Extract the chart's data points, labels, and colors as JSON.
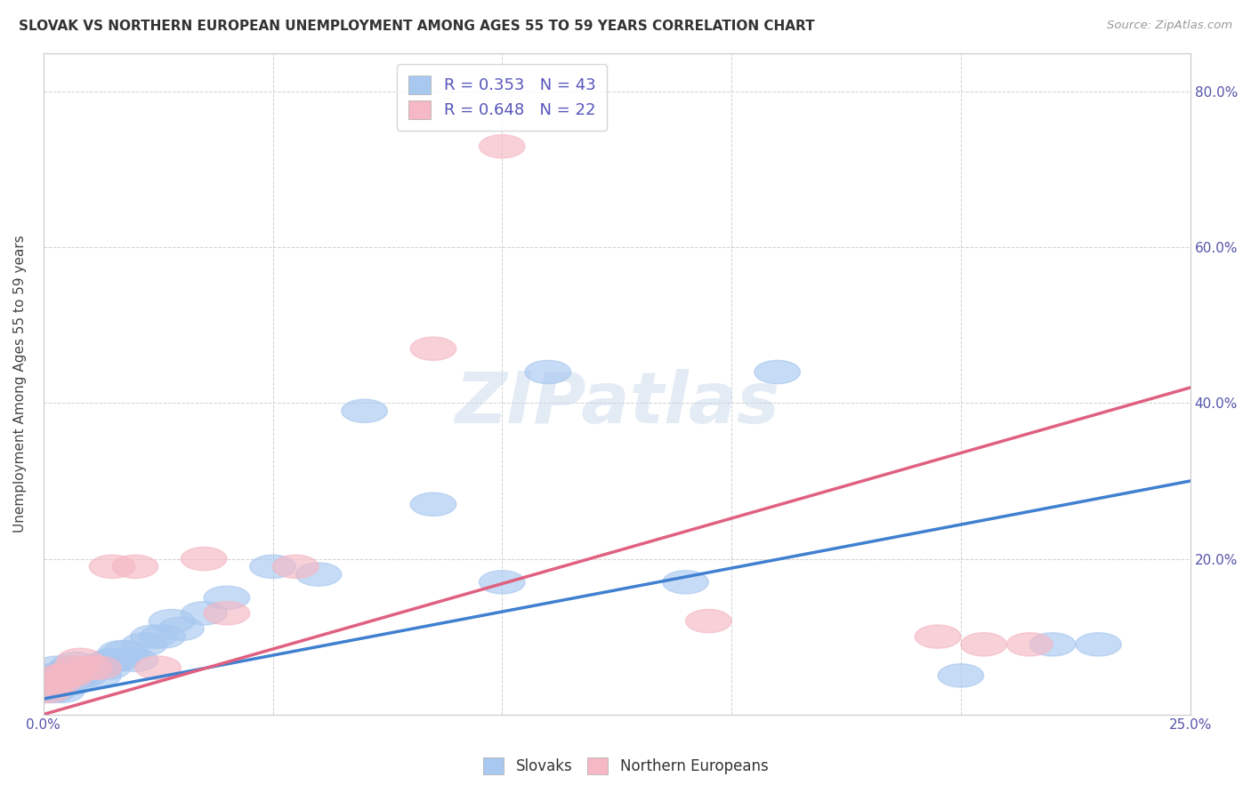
{
  "title": "SLOVAK VS NORTHERN EUROPEAN UNEMPLOYMENT AMONG AGES 55 TO 59 YEARS CORRELATION CHART",
  "source": "Source: ZipAtlas.com",
  "ylabel": "Unemployment Among Ages 55 to 59 years",
  "xlim": [
    0.0,
    0.25
  ],
  "ylim": [
    0.0,
    0.85
  ],
  "xticks": [
    0.0,
    0.05,
    0.1,
    0.15,
    0.2,
    0.25
  ],
  "yticks": [
    0.0,
    0.2,
    0.4,
    0.6,
    0.8
  ],
  "blue_R": 0.353,
  "blue_N": 43,
  "pink_R": 0.648,
  "pink_N": 22,
  "blue_color": "#A8C8F0",
  "pink_color": "#F5B8C4",
  "blue_line_color": "#4080D0",
  "pink_line_color": "#E06080",
  "grid_color": "#CCCCCC",
  "background_color": "#FFFFFF",
  "watermark": "ZIPatlas",
  "blue_scatter_x": [
    0.001,
    0.002,
    0.002,
    0.003,
    0.003,
    0.004,
    0.004,
    0.005,
    0.005,
    0.006,
    0.006,
    0.007,
    0.007,
    0.008,
    0.009,
    0.01,
    0.011,
    0.012,
    0.013,
    0.014,
    0.015,
    0.016,
    0.017,
    0.018,
    0.02,
    0.022,
    0.024,
    0.026,
    0.028,
    0.03,
    0.035,
    0.04,
    0.05,
    0.06,
    0.07,
    0.085,
    0.1,
    0.11,
    0.14,
    0.16,
    0.2,
    0.22,
    0.23
  ],
  "blue_scatter_y": [
    0.03,
    0.03,
    0.05,
    0.04,
    0.06,
    0.03,
    0.05,
    0.04,
    0.055,
    0.04,
    0.06,
    0.05,
    0.065,
    0.05,
    0.05,
    0.06,
    0.06,
    0.05,
    0.065,
    0.06,
    0.07,
    0.07,
    0.08,
    0.08,
    0.07,
    0.09,
    0.1,
    0.1,
    0.12,
    0.11,
    0.13,
    0.15,
    0.19,
    0.18,
    0.39,
    0.27,
    0.17,
    0.44,
    0.17,
    0.44,
    0.05,
    0.09,
    0.09
  ],
  "pink_scatter_x": [
    0.001,
    0.002,
    0.003,
    0.004,
    0.005,
    0.006,
    0.007,
    0.008,
    0.01,
    0.012,
    0.015,
    0.02,
    0.025,
    0.035,
    0.04,
    0.055,
    0.085,
    0.1,
    0.145,
    0.195,
    0.205,
    0.215
  ],
  "pink_scatter_y": [
    0.03,
    0.04,
    0.04,
    0.05,
    0.05,
    0.05,
    0.06,
    0.07,
    0.06,
    0.06,
    0.19,
    0.19,
    0.06,
    0.2,
    0.13,
    0.19,
    0.47,
    0.73,
    0.12,
    0.1,
    0.09,
    0.09
  ],
  "blue_line_x": [
    0.0,
    0.25
  ],
  "blue_line_y": [
    0.02,
    0.3
  ],
  "pink_line_x": [
    0.0,
    0.25
  ],
  "pink_line_y": [
    0.0,
    0.42
  ]
}
